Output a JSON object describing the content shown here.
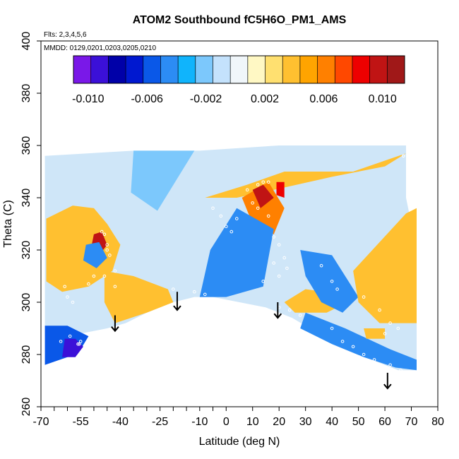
{
  "chart_data": {
    "type": "heatmap",
    "title": "ATOM2 Southbound fC5H6O_PM1_AMS",
    "note_flights": "Flts: 2,3,4,5,6",
    "note_dates": "MMDD: 0129,0201,0203,0205,0210",
    "xlabel": "Latitude (deg N)",
    "ylabel": "Theta (C)",
    "xlim": [
      -70,
      80
    ],
    "ylim": [
      260,
      400
    ],
    "x_ticks": [
      -70,
      -55,
      -40,
      -25,
      -10,
      0,
      10,
      20,
      30,
      40,
      50,
      60,
      70,
      80
    ],
    "x_tick_labels": [
      "-70",
      "-55",
      "-40",
      "-25",
      "-10",
      "0",
      "10",
      "20",
      "30",
      "40",
      "50",
      "60",
      "70",
      "80"
    ],
    "x_minor_ticks": [
      -65,
      -60,
      -50,
      -45,
      -35,
      -30,
      -20,
      -15,
      -5
    ],
    "y_ticks": [
      260,
      280,
      300,
      320,
      340,
      360,
      380,
      400
    ],
    "y_tick_labels": [
      "260",
      "280",
      "300",
      "320",
      "340",
      "360",
      "380",
      "400"
    ],
    "grid": false,
    "colorbar": {
      "placement": "top",
      "range": [
        -0.011,
        0.0115
      ],
      "tick_values": [
        -0.01,
        -0.006,
        -0.002,
        0.002,
        0.006,
        0.01
      ],
      "tick_labels": [
        "-0.010",
        "-0.006",
        "-0.002",
        "0.002",
        "0.006",
        "0.010"
      ],
      "colors": [
        "#7a18e8",
        "#3b10d8",
        "#0000a8",
        "#0018d0",
        "#0a58e8",
        "#2c8cf4",
        "#10b4fc",
        "#7cc8fc",
        "#c4e2fc",
        "#f0f6fa",
        "#fff8c4",
        "#ffe070",
        "#ffc030",
        "#ffa400",
        "#ff8000",
        "#ff4800",
        "#ee0000",
        "#c01414",
        "#a01818"
      ]
    },
    "series_colors": {
      "positive": "#f5b830",
      "negative": "#3c96ef",
      "neutral": "#cfe6f8"
    },
    "field_regions": [
      {
        "name": "south-base",
        "level": "neutral",
        "polygon": [
          [
            -68.5,
            356
          ],
          [
            -35,
            358
          ],
          [
            -10,
            358
          ],
          [
            20,
            360
          ],
          [
            68,
            360
          ],
          [
            68,
            340
          ],
          [
            72,
            320
          ],
          [
            72,
            274
          ],
          [
            65,
            274
          ],
          [
            55,
            278
          ],
          [
            45,
            282
          ],
          [
            35,
            288
          ],
          [
            25,
            294
          ],
          [
            15,
            298
          ],
          [
            5,
            300
          ],
          [
            -5,
            302
          ],
          [
            -12,
            302
          ],
          [
            -20,
            300
          ],
          [
            -30,
            296
          ],
          [
            -38,
            292
          ],
          [
            -45,
            290
          ],
          [
            -55,
            288
          ],
          [
            -68.5,
            287
          ]
        ]
      },
      {
        "level": -0.0055,
        "polygon": [
          [
            -68.5,
            291
          ],
          [
            -60,
            291
          ],
          [
            -52,
            287
          ],
          [
            -55,
            282
          ],
          [
            -60,
            279
          ],
          [
            -68.5,
            276
          ]
        ]
      },
      {
        "level": -0.0095,
        "polygon": [
          [
            -61,
            286
          ],
          [
            -57,
            286
          ],
          [
            -54,
            283
          ],
          [
            -57,
            279
          ],
          [
            -62,
            279
          ]
        ]
      },
      {
        "level": 0.0035,
        "polygon": [
          [
            -68,
            332
          ],
          [
            -58,
            337
          ],
          [
            -50,
            336
          ],
          [
            -45,
            330
          ],
          [
            -40,
            322
          ],
          [
            -43,
            312
          ],
          [
            -52,
            306
          ],
          [
            -62,
            304
          ],
          [
            -68,
            308
          ]
        ]
      },
      {
        "level": 0.0095,
        "polygon": [
          [
            -50,
            326
          ],
          [
            -47,
            327
          ],
          [
            -45,
            322
          ],
          [
            -48,
            318
          ],
          [
            -51,
            321
          ]
        ]
      },
      {
        "level": -0.0045,
        "polygon": [
          [
            -53,
            322
          ],
          [
            -48,
            323
          ],
          [
            -45,
            317
          ],
          [
            -49,
            313
          ],
          [
            -54,
            316
          ]
        ]
      },
      {
        "level": 0.0042,
        "polygon": [
          [
            -46,
            312
          ],
          [
            -35,
            310
          ],
          [
            -22,
            305
          ],
          [
            -20,
            300
          ],
          [
            -30,
            296
          ],
          [
            -42,
            292
          ],
          [
            -46,
            300
          ]
        ]
      },
      {
        "level": -0.0025,
        "polygon": [
          [
            -35,
            358
          ],
          [
            -12,
            358
          ],
          [
            -26,
            335
          ],
          [
            -36,
            342
          ]
        ]
      },
      {
        "level": 0.0035,
        "polygon": [
          [
            -8,
            340
          ],
          [
            8,
            345
          ],
          [
            22,
            350
          ],
          [
            48,
            350
          ],
          [
            68,
            357
          ],
          [
            60,
            352
          ],
          [
            40,
            348
          ],
          [
            18,
            343
          ],
          [
            4,
            340
          ]
        ]
      },
      {
        "level": 0.0065,
        "polygon": [
          [
            6,
            340
          ],
          [
            16,
            346
          ],
          [
            22,
            336
          ],
          [
            18,
            326
          ],
          [
            10,
            330
          ]
        ]
      },
      {
        "level": 0.0095,
        "polygon": [
          [
            10,
            343
          ],
          [
            14,
            345
          ],
          [
            18,
            340
          ],
          [
            13,
            336
          ]
        ]
      },
      {
        "level": 0.0085,
        "polygon": [
          [
            19,
            346
          ],
          [
            22,
            346
          ],
          [
            22,
            340
          ],
          [
            19,
            341
          ]
        ]
      },
      {
        "level": -0.004,
        "polygon": [
          [
            -10,
            302
          ],
          [
            0,
            302
          ],
          [
            14,
            306
          ],
          [
            18,
            328
          ],
          [
            4,
            336
          ],
          [
            -6,
            320
          ]
        ]
      },
      {
        "level": 0.0035,
        "polygon": [
          [
            22,
            300
          ],
          [
            30,
            305
          ],
          [
            44,
            303
          ],
          [
            46,
            300
          ],
          [
            38,
            296
          ],
          [
            26,
            296
          ]
        ]
      },
      {
        "level": -0.0045,
        "polygon": [
          [
            28,
            320
          ],
          [
            40,
            318
          ],
          [
            50,
            302
          ],
          [
            44,
            296
          ],
          [
            36,
            300
          ],
          [
            30,
            310
          ]
        ]
      },
      {
        "level": 0.0042,
        "polygon": [
          [
            48,
            312
          ],
          [
            68,
            334
          ],
          [
            72,
            336
          ],
          [
            72,
            292
          ],
          [
            58,
            292
          ],
          [
            50,
            300
          ]
        ]
      },
      {
        "level": -0.004,
        "polygon": [
          [
            30,
            296
          ],
          [
            45,
            290
          ],
          [
            62,
            282
          ],
          [
            72,
            278
          ],
          [
            72,
            274
          ],
          [
            64,
            275
          ],
          [
            52,
            279
          ],
          [
            40,
            284
          ],
          [
            28,
            290
          ]
        ]
      },
      {
        "level": 0.0035,
        "polygon": [
          [
            52,
            290
          ],
          [
            60,
            290
          ],
          [
            60,
            286
          ],
          [
            53,
            286
          ]
        ]
      }
    ],
    "profile_points": [
      [
        -62.5,
        285
      ],
      [
        -59,
        287
      ],
      [
        -56,
        284
      ],
      [
        -55.5,
        284
      ],
      [
        -55,
        285
      ],
      [
        -47,
        327
      ],
      [
        -46,
        326
      ],
      [
        -45,
        322
      ],
      [
        -45,
        320
      ],
      [
        -44,
        318
      ],
      [
        -52,
        307
      ],
      [
        -50,
        310
      ],
      [
        -46,
        310
      ],
      [
        -42,
        306
      ],
      [
        -42,
        312
      ],
      [
        -58,
        300
      ],
      [
        -60,
        302
      ],
      [
        -61,
        306
      ],
      [
        -5,
        336
      ],
      [
        -2,
        333
      ],
      [
        0,
        329
      ],
      [
        2,
        327
      ],
      [
        4,
        332
      ],
      [
        8,
        343
      ],
      [
        12,
        345
      ],
      [
        14,
        346
      ],
      [
        16,
        346
      ],
      [
        10,
        338
      ],
      [
        12,
        336
      ],
      [
        16,
        333
      ],
      [
        18,
        325
      ],
      [
        20,
        322
      ],
      [
        22,
        317
      ],
      [
        23,
        313
      ],
      [
        18,
        315
      ],
      [
        20,
        310
      ],
      [
        36,
        314
      ],
      [
        40,
        308
      ],
      [
        42,
        305
      ],
      [
        52,
        302
      ],
      [
        58,
        297
      ],
      [
        62,
        292
      ],
      [
        65,
        290
      ],
      [
        60,
        288
      ],
      [
        40,
        290
      ],
      [
        44,
        285
      ],
      [
        48,
        283
      ],
      [
        52,
        280
      ],
      [
        56,
        278
      ],
      [
        62,
        276
      ],
      [
        66,
        274
      ],
      [
        70,
        273
      ],
      [
        67,
        356
      ],
      [
        -20,
        305
      ],
      [
        -12,
        304
      ],
      [
        -8,
        303
      ],
      [
        14,
        308
      ],
      [
        20,
        298
      ],
      [
        24,
        297
      ],
      [
        28,
        295
      ]
    ],
    "arrows": [
      {
        "x": -42,
        "y_from": 295,
        "y_to": 289
      },
      {
        "x": -18.5,
        "y_from": 304,
        "y_to": 297
      },
      {
        "x": 19.5,
        "y_from": 300,
        "y_to": 294
      },
      {
        "x": 61,
        "y_from": 273,
        "y_to": 267
      }
    ]
  }
}
